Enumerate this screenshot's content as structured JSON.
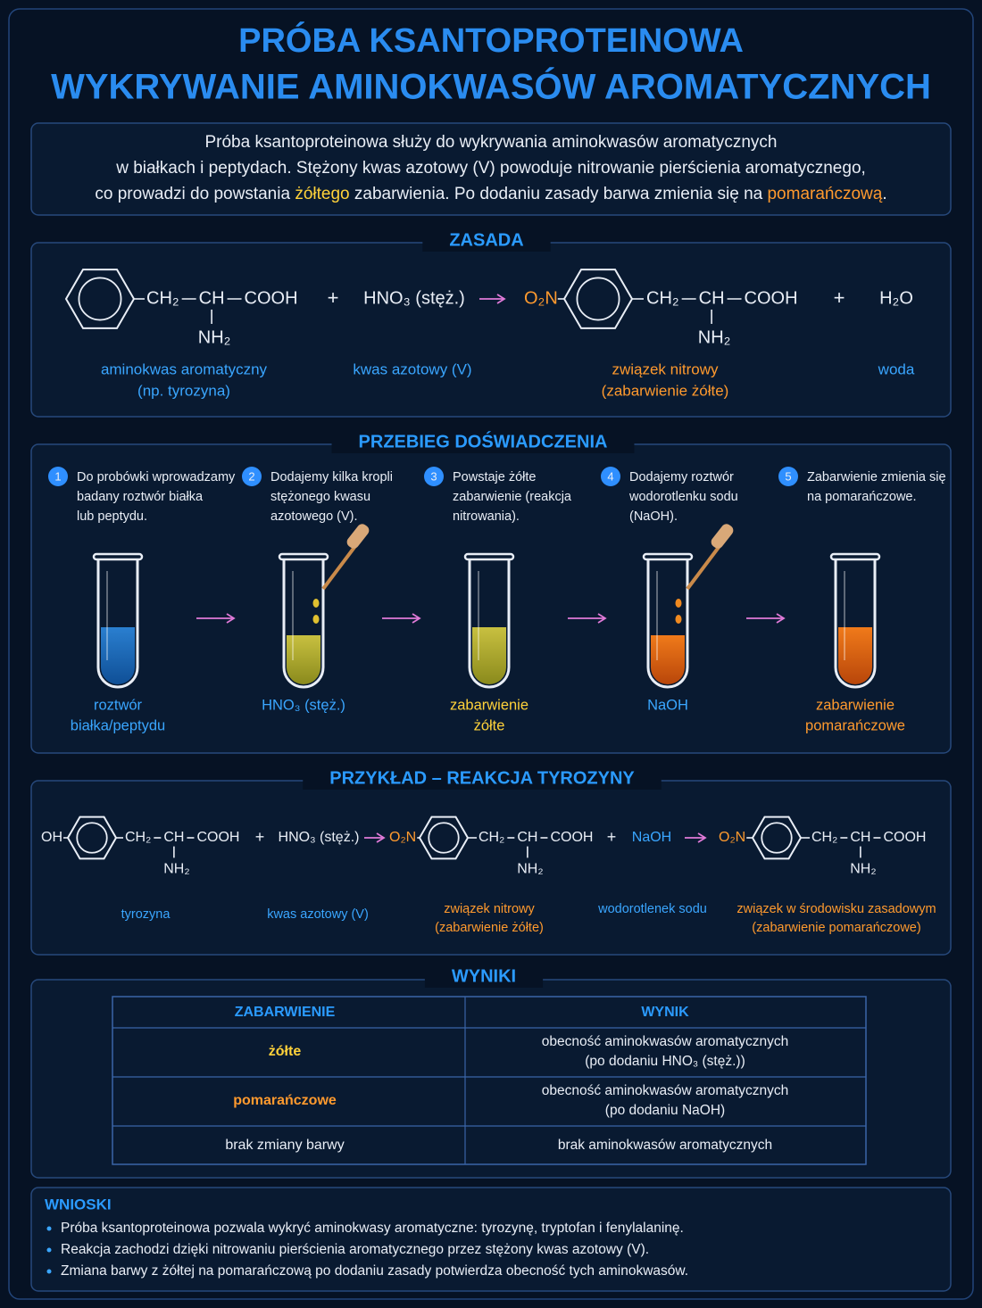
{
  "title": [
    "PRÓBA KSANTOPROTEINOWA",
    "WYKRYWANIE AMINOKWASÓW AROMATYCZNYCH"
  ],
  "intro": {
    "lines": [
      [
        "Próba ksantoproteinowa służy do wykrywania aminokwasów aromatycznych"
      ],
      [
        "w białkach i peptydach. Stężony kwas azotowy (V) powoduje nitrowanie pierścienia aromatycznego,"
      ],
      [
        "co prowadzi do powstania ",
        "żółtego",
        " zabarwienia. Po dodaniu zasady barwa zmienia się na ",
        "pomarańczową",
        "."
      ]
    ]
  },
  "principle": {
    "heading": "ZASADA",
    "equation": {
      "reactant": {
        "chain": [
          "CH₂",
          "CH",
          "COOH"
        ],
        "amine": "NH₂"
      },
      "plus_1": "+",
      "reagent": "HNO₃ (stęż.)",
      "product": {
        "substituent": "O₂N",
        "chain": [
          "CH₂",
          "CH",
          "COOH"
        ],
        "amine": "NH₂"
      },
      "plus_2": "+",
      "byproduct": "H₂O"
    },
    "labels": [
      [
        "aminokwas aromatyczny",
        "(np. tyrozyna)"
      ],
      [
        "kwas azotowy (V)"
      ],
      [
        "związek nitrowy",
        "(zabarwienie żółte)"
      ],
      [
        "woda"
      ]
    ]
  },
  "procedure": {
    "heading": "PRZEBIEG DOŚWIADCZENIA",
    "steps": [
      {
        "number": 1,
        "text": [
          "Do probówki wprowadzamy",
          "badany roztwór białka",
          "lub peptydu."
        ],
        "label": [
          "roztwór",
          "białka/peptydu"
        ]
      },
      {
        "number": 2,
        "text": [
          "Dodajemy kilka kropli",
          "stężonego kwasu",
          "azotowego (V)."
        ],
        "label": [
          "HNO₃ (stęż.)"
        ]
      },
      {
        "number": 3,
        "text": [
          "Powstaje żółte",
          "zabarwienie (reakcja",
          "nitrowania)."
        ],
        "label": [
          "zabarwienie",
          "żółte"
        ]
      },
      {
        "number": 4,
        "text": [
          "Dodajemy roztwór",
          "wodorotlenku sodu",
          "(NaOH)."
        ],
        "label": [
          "NaOH"
        ]
      },
      {
        "number": 5,
        "text": [
          "Zabarwienie zmienia się",
          "na pomarańczowe."
        ],
        "label": [
          "zabarwienie",
          "pomarańczowe"
        ]
      }
    ]
  },
  "example": {
    "heading": "PRZYKŁAD – REAKCJA TYROZYNY",
    "equation": {
      "reactant": {
        "substituent": "OH",
        "chain": [
          "CH₂",
          "CH",
          "COOH"
        ],
        "amine": "NH₂"
      },
      "plus_1": "+",
      "reagent": "HNO₃ (stęż.)",
      "product": {
        "substituent": "O₂N",
        "chain": [
          "CH₂",
          "CH",
          "COOH"
        ],
        "amine": "NH₂"
      },
      "plus_2": "+",
      "base": "NaOH",
      "final_product": {
        "substituent": "O₂N",
        "chain": [
          "CH₂",
          "CH",
          "COOH"
        ],
        "amine": "NH₂"
      }
    },
    "labels": [
      [
        "tyrozyna"
      ],
      [
        "kwas azotowy (V)"
      ],
      [
        "związek nitrowy",
        "(zabarwienie żółte)"
      ],
      [
        "wodorotlenek sodu"
      ],
      [
        "związek w środowisku zasadowym",
        "(zabarwienie pomarańczowe)"
      ]
    ]
  },
  "results": {
    "heading": "WYNIKI",
    "table": {
      "header": [
        "ZABARWIENIE",
        "WYNIK"
      ],
      "rows": [
        [
          "żółte",
          [
            "obecność aminokwasów aromatycznych",
            "(po dodaniu HNO₃ (stęż.))"
          ]
        ],
        [
          "pomarańczowe",
          [
            "obecność aminokwasów aromatycznych",
            "(po dodaniu NaOH)"
          ]
        ],
        [
          "brak zmiany barwy",
          [
            "brak aminokwasów aromatycznych"
          ]
        ]
      ]
    }
  },
  "conclusions": {
    "heading": "WNIOSKI",
    "items": [
      "Próba ksantoproteinowa pozwala wykryć aminokwasy aromatyczne: tyrozynę, tryptofan i fenylalaninę.",
      "Reakcja zachodzi dzięki nitrowaniu pierścienia aromatycznego przez stężony kwas azotowy (V).",
      "Zmiana barwy z żółtej na pomarańczową po dodaniu zasady potwierdza obecność tych aminokwasów."
    ]
  }
}
